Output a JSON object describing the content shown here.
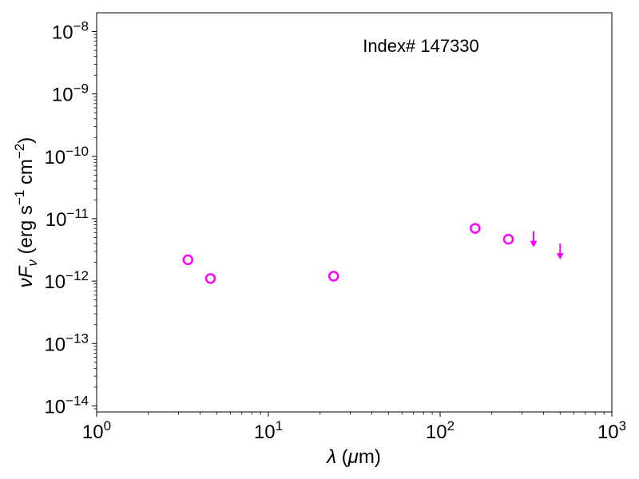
{
  "chart_data": {
    "type": "scatter",
    "title": "",
    "annotation": "Index# 147330",
    "xlabel": "λ (μm)",
    "ylabel": "νF_ν (erg s⁻¹ cm⁻²)",
    "x_scale": "log",
    "y_scale": "log",
    "xlim": [
      1,
      1000
    ],
    "ylim": [
      8e-15,
      2e-08
    ],
    "x_ticks": [
      {
        "value": 1,
        "base": "10",
        "exp": "0"
      },
      {
        "value": 10,
        "base": "10",
        "exp": "1"
      },
      {
        "value": 100,
        "base": "10",
        "exp": "2"
      },
      {
        "value": 1000,
        "base": "10",
        "exp": "3"
      }
    ],
    "y_ticks": [
      {
        "value": 1e-14,
        "base": "10",
        "exp": "−14"
      },
      {
        "value": 1e-13,
        "base": "10",
        "exp": "−13"
      },
      {
        "value": 1e-12,
        "base": "10",
        "exp": "−12"
      },
      {
        "value": 1e-11,
        "base": "10",
        "exp": "−11"
      },
      {
        "value": 1e-10,
        "base": "10",
        "exp": "−10"
      },
      {
        "value": 1e-09,
        "base": "10",
        "exp": "−9"
      },
      {
        "value": 1e-08,
        "base": "10",
        "exp": "−8"
      }
    ],
    "grid": false,
    "marker_color": "#ff00ff",
    "series": [
      {
        "marker": "open-circle",
        "points": [
          {
            "x": 3.4,
            "y": 2.2e-12
          },
          {
            "x": 4.6,
            "y": 1.1e-12
          },
          {
            "x": 24,
            "y": 1.2e-12
          },
          {
            "x": 160,
            "y": 7e-12
          },
          {
            "x": 250,
            "y": 4.7e-12
          }
        ]
      },
      {
        "marker": "upper-limit-arrow",
        "points": [
          {
            "x": 350,
            "y": 6.3e-12
          },
          {
            "x": 500,
            "y": 4e-12
          }
        ]
      }
    ]
  }
}
